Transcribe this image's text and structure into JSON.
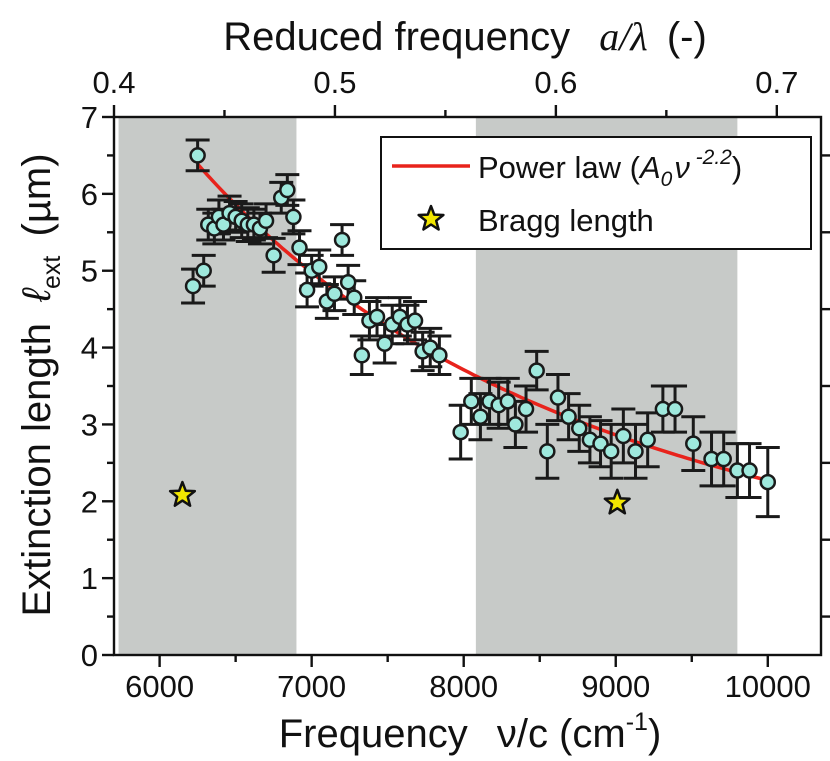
{
  "chart_data": {
    "type": "scatter",
    "xlabel_main": "Frequency",
    "xlabel_symbol": "ν/c (cm",
    "xlabel_exp": "-1",
    "xlabel_close": ")",
    "ylabel_main": "Extinction length",
    "ylabel_symbol": "ℓ",
    "ylabel_sub": "ext",
    "ylabel_unit": "(µm)",
    "top_xlabel_main": "Reduced frequency",
    "top_xlabel_symbol": "a/λ",
    "top_xlabel_unit": "(-)",
    "xlim": [
      5700,
      10350
    ],
    "ylim": [
      0,
      7
    ],
    "top_xlim": [
      0.4,
      0.72
    ],
    "x_ticks": [
      "6000",
      "7000",
      "8000",
      "9000",
      "10000"
    ],
    "y_ticks": [
      "0",
      "1",
      "2",
      "3",
      "4",
      "5",
      "6",
      "7"
    ],
    "top_ticks": [
      "0.4",
      "0.5",
      "0.6",
      "0.7"
    ],
    "shaded_regions": [
      [
        5730,
        6900
      ],
      [
        8080,
        9800
      ]
    ],
    "colors": {
      "shade": "#c7cac8",
      "marker_fill": "#9fe9dd",
      "marker_edge": "#1a1a1a",
      "fit": "#e8231c",
      "star_fill": "#f2e600"
    },
    "legend": {
      "position": "top-right",
      "fit_label": "Power law (",
      "fit_A": "A",
      "fit_sub": "0",
      "fit_nu": "ν",
      "fit_exp": " -2.2",
      "fit_close": ")",
      "star_label": "Bragg length"
    },
    "series": [
      {
        "name": "Extinction length",
        "points": [
          [
            6220,
            4.8,
            0.22
          ],
          [
            6250,
            6.5,
            0.2
          ],
          [
            6290,
            5.0,
            0.2
          ],
          [
            6320,
            5.6,
            0.2
          ],
          [
            6360,
            5.55,
            0.2
          ],
          [
            6390,
            5.7,
            0.22
          ],
          [
            6420,
            5.6,
            0.2
          ],
          [
            6460,
            5.75,
            0.22
          ],
          [
            6500,
            5.7,
            0.2
          ],
          [
            6540,
            5.65,
            0.22
          ],
          [
            6580,
            5.6,
            0.22
          ],
          [
            6620,
            5.6,
            0.2
          ],
          [
            6660,
            5.55,
            0.2
          ],
          [
            6700,
            5.65,
            0.22
          ],
          [
            6750,
            5.2,
            0.22
          ],
          [
            6800,
            5.95,
            0.2
          ],
          [
            6840,
            6.05,
            0.2
          ],
          [
            6880,
            5.7,
            0.22
          ],
          [
            6920,
            5.3,
            0.22
          ],
          [
            6970,
            4.75,
            0.22
          ],
          [
            7000,
            5.0,
            0.2
          ],
          [
            7050,
            5.05,
            0.22
          ],
          [
            7100,
            4.6,
            0.22
          ],
          [
            7150,
            4.7,
            0.22
          ],
          [
            7200,
            5.4,
            0.2
          ],
          [
            7240,
            4.85,
            0.22
          ],
          [
            7280,
            4.65,
            0.22
          ],
          [
            7330,
            3.9,
            0.25
          ],
          [
            7380,
            4.35,
            0.25
          ],
          [
            7430,
            4.4,
            0.25
          ],
          [
            7480,
            4.05,
            0.25
          ],
          [
            7530,
            4.3,
            0.25
          ],
          [
            7580,
            4.4,
            0.25
          ],
          [
            7630,
            4.3,
            0.25
          ],
          [
            7680,
            4.35,
            0.25
          ],
          [
            7730,
            3.95,
            0.25
          ],
          [
            7780,
            4.0,
            0.25
          ],
          [
            7840,
            3.9,
            0.25
          ],
          [
            7980,
            2.9,
            0.35
          ],
          [
            8050,
            3.3,
            0.3
          ],
          [
            8110,
            3.1,
            0.3
          ],
          [
            8170,
            3.3,
            0.3
          ],
          [
            8230,
            3.25,
            0.3
          ],
          [
            8290,
            3.3,
            0.3
          ],
          [
            8340,
            3.0,
            0.3
          ],
          [
            8410,
            3.2,
            0.3
          ],
          [
            8480,
            3.7,
            0.25
          ],
          [
            8550,
            2.65,
            0.35
          ],
          [
            8620,
            3.35,
            0.3
          ],
          [
            8690,
            3.1,
            0.3
          ],
          [
            8760,
            2.95,
            0.3
          ],
          [
            8830,
            2.8,
            0.3
          ],
          [
            8900,
            2.75,
            0.3
          ],
          [
            8970,
            2.65,
            0.35
          ],
          [
            9050,
            2.85,
            0.35
          ],
          [
            9130,
            2.65,
            0.35
          ],
          [
            9210,
            2.8,
            0.35
          ],
          [
            9310,
            3.2,
            0.3
          ],
          [
            9390,
            3.2,
            0.3
          ],
          [
            9510,
            2.75,
            0.35
          ],
          [
            9630,
            2.55,
            0.35
          ],
          [
            9710,
            2.55,
            0.35
          ],
          [
            9800,
            2.4,
            0.35
          ],
          [
            9880,
            2.4,
            0.35
          ],
          [
            10000,
            2.25,
            0.45
          ]
        ]
      }
    ],
    "fit": {
      "A": 1433000000.0,
      "exponent": -2.2,
      "x_range": [
        6250,
        10000
      ]
    },
    "bragg_points": [
      [
        6150,
        2.08
      ],
      [
        9010,
        1.98
      ]
    ]
  }
}
